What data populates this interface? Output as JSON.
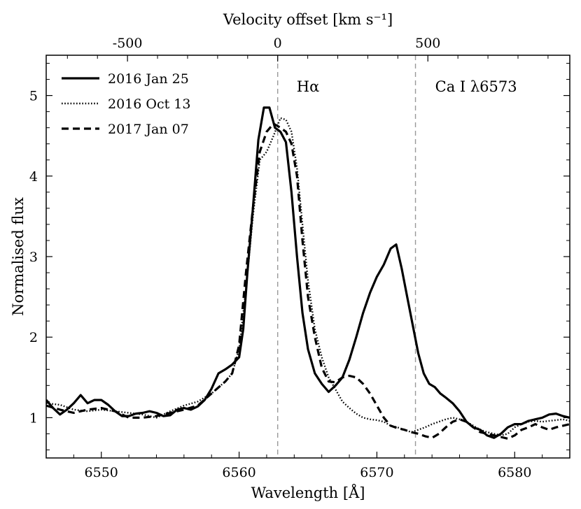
{
  "chart_data": {
    "type": "line",
    "xlabel": "Wavelength [Å]",
    "ylabel": "Normalised flux",
    "top_xlabel": "Velocity offset [km s⁻¹]",
    "xlim": [
      6546,
      6584
    ],
    "ylim": [
      0.5,
      5.5
    ],
    "xticks": [
      6550,
      6560,
      6570,
      6580
    ],
    "yticks": [
      1,
      2,
      3,
      4,
      5
    ],
    "top_ticks": [
      {
        "label": "-500",
        "wavelength": 6551.9
      },
      {
        "label": "0",
        "wavelength": 6562.8
      },
      {
        "label": "500",
        "wavelength": 6573.7
      }
    ],
    "vlines": [
      6562.8,
      6572.8
    ],
    "annotations": [
      {
        "text": "Hα",
        "x": 6565.0,
        "y": 5.05
      },
      {
        "text": "Ca I λ6573",
        "x": 6577.2,
        "y": 5.05
      }
    ],
    "legend_position": "top-left",
    "series": [
      {
        "name": "2016 Jan 25",
        "style": "solid",
        "x": [
          6546,
          6546.5,
          6547,
          6547.5,
          6548,
          6548.5,
          6549,
          6549.5,
          6550,
          6550.5,
          6551,
          6551.5,
          6552,
          6552.5,
          6553,
          6553.5,
          6554,
          6554.5,
          6555,
          6555.5,
          6556,
          6556.5,
          6557,
          6557.5,
          6558,
          6558.5,
          6559,
          6559.5,
          6560,
          6560.3,
          6560.6,
          6561,
          6561.4,
          6561.8,
          6562.2,
          6562.6,
          6563,
          6563.4,
          6563.8,
          6564.2,
          6564.6,
          6565,
          6565.5,
          6566,
          6566.5,
          6567,
          6567.5,
          6568,
          6568.5,
          6569,
          6569.5,
          6570,
          6570.5,
          6571,
          6571.4,
          6571.8,
          6572.2,
          6572.6,
          6573,
          6573.4,
          6573.8,
          6574.2,
          6574.6,
          6575,
          6575.5,
          6576,
          6576.5,
          6577,
          6577.5,
          6578,
          6578.5,
          6579,
          6579.5,
          6580,
          6580.5,
          6581,
          6581.5,
          6582,
          6582.5,
          6583,
          6583.5,
          6584
        ],
        "y": [
          1.22,
          1.12,
          1.04,
          1.1,
          1.18,
          1.28,
          1.18,
          1.22,
          1.22,
          1.16,
          1.08,
          1.02,
          1.02,
          1.05,
          1.06,
          1.08,
          1.06,
          1.02,
          1.03,
          1.1,
          1.12,
          1.1,
          1.14,
          1.22,
          1.36,
          1.55,
          1.6,
          1.66,
          1.75,
          2.1,
          2.8,
          3.6,
          4.45,
          4.85,
          4.85,
          4.6,
          4.55,
          4.42,
          3.8,
          3.0,
          2.3,
          1.85,
          1.55,
          1.42,
          1.32,
          1.4,
          1.5,
          1.72,
          2.0,
          2.3,
          2.55,
          2.75,
          2.9,
          3.1,
          3.15,
          2.85,
          2.5,
          2.15,
          1.8,
          1.55,
          1.42,
          1.38,
          1.3,
          1.25,
          1.18,
          1.08,
          0.95,
          0.88,
          0.85,
          0.78,
          0.75,
          0.8,
          0.88,
          0.92,
          0.92,
          0.96,
          0.98,
          1.0,
          1.04,
          1.05,
          1.02,
          1.0
        ]
      },
      {
        "name": "2016 Oct 13",
        "style": "dotted",
        "x": [
          6546,
          6547,
          6548,
          6549,
          6550,
          6551,
          6552,
          6553,
          6554,
          6555,
          6556,
          6557,
          6558,
          6559,
          6559.5,
          6560,
          6560.5,
          6561,
          6561.5,
          6562,
          6562.5,
          6563,
          6563.4,
          6563.8,
          6564.2,
          6564.6,
          6565,
          6565.5,
          6566,
          6566.5,
          6567,
          6567.5,
          6568,
          6568.5,
          6569,
          6569.5,
          6570,
          6570.5,
          6571,
          6571.5,
          6572,
          6572.5,
          6573,
          6573.5,
          6574,
          6574.5,
          6575,
          6575.5,
          6576,
          6576.5,
          6577,
          6577.5,
          6578,
          6578.5,
          6579,
          6579.5,
          6580,
          6580.5,
          6581,
          6581.5,
          6582,
          6582.5,
          6583,
          6583.5,
          6584
        ],
        "y": [
          1.18,
          1.16,
          1.1,
          1.08,
          1.1,
          1.08,
          1.06,
          1.04,
          1.0,
          1.08,
          1.15,
          1.2,
          1.3,
          1.45,
          1.55,
          1.85,
          2.6,
          3.5,
          4.2,
          4.3,
          4.5,
          4.72,
          4.7,
          4.55,
          4.1,
          3.4,
          2.7,
          2.1,
          1.75,
          1.5,
          1.35,
          1.2,
          1.12,
          1.05,
          1.0,
          0.98,
          0.97,
          0.95,
          0.9,
          0.88,
          0.85,
          0.82,
          0.85,
          0.88,
          0.92,
          0.95,
          0.98,
          1.0,
          0.98,
          0.95,
          0.9,
          0.85,
          0.82,
          0.8,
          0.78,
          0.8,
          0.88,
          0.92,
          0.95,
          0.96,
          0.95,
          0.96,
          0.97,
          0.98,
          0.96
        ]
      },
      {
        "name": "2017 Jan 07",
        "style": "dashed",
        "x": [
          6546,
          6547,
          6548,
          6549,
          6550,
          6551,
          6552,
          6553,
          6554,
          6555,
          6556,
          6557,
          6558,
          6559,
          6559.5,
          6560,
          6560.5,
          6561,
          6561.5,
          6562,
          6562.5,
          6563,
          6563.4,
          6563.8,
          6564.2,
          6564.6,
          6565,
          6565.5,
          6566,
          6566.5,
          6567,
          6567.5,
          6568,
          6568.5,
          6569,
          6569.5,
          6570,
          6570.5,
          6571,
          6571.5,
          6572,
          6572.5,
          6573,
          6573.5,
          6574,
          6574.5,
          6575,
          6575.5,
          6576,
          6576.5,
          6577,
          6577.5,
          6578,
          6578.5,
          6579,
          6579.5,
          6580,
          6580.5,
          6581,
          6581.5,
          6582,
          6582.5,
          6583,
          6583.5,
          6584
        ],
        "y": [
          1.15,
          1.1,
          1.06,
          1.1,
          1.12,
          1.08,
          1.0,
          1.0,
          1.02,
          1.06,
          1.1,
          1.15,
          1.3,
          1.45,
          1.55,
          1.9,
          2.8,
          3.6,
          4.3,
          4.55,
          4.65,
          4.6,
          4.55,
          4.4,
          4.0,
          3.2,
          2.5,
          2.0,
          1.62,
          1.45,
          1.44,
          1.5,
          1.52,
          1.5,
          1.42,
          1.3,
          1.15,
          1.0,
          0.9,
          0.87,
          0.85,
          0.82,
          0.8,
          0.77,
          0.75,
          0.8,
          0.88,
          0.95,
          0.98,
          0.95,
          0.88,
          0.82,
          0.8,
          0.78,
          0.76,
          0.74,
          0.78,
          0.85,
          0.88,
          0.92,
          0.88,
          0.85,
          0.88,
          0.9,
          0.92
        ]
      }
    ]
  }
}
